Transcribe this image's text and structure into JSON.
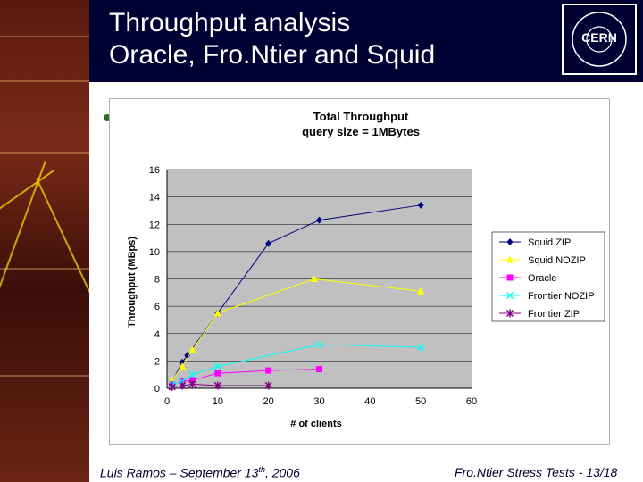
{
  "slide": {
    "title_line1": "Throughput analysis",
    "title_line2": "Oracle, Fro.Ntier and Squid",
    "logo_text": "CERN",
    "footer_left_prefix": "Luis Ramos – September 13",
    "footer_left_sup": "th",
    "footer_left_suffix": ", 2006",
    "footer_right": "Fro.Ntier Stress Tests - 13/18"
  },
  "chart_data": {
    "type": "line",
    "title": "Total Throughput",
    "subtitle": "query size = 1MBytes",
    "xlabel": "# of clients",
    "ylabel": "Throughput (MBps)",
    "xlim": [
      0,
      60
    ],
    "ylim": [
      0,
      16
    ],
    "xticks": [
      0,
      10,
      20,
      30,
      40,
      50,
      60
    ],
    "yticks": [
      0,
      2,
      4,
      6,
      8,
      10,
      12,
      14,
      16
    ],
    "grid": "horizontal",
    "legend_position": "right",
    "series": [
      {
        "name": "Squid ZIP",
        "color": "#00007f",
        "marker": "diamond",
        "x": [
          1,
          3,
          4,
          10,
          20,
          30,
          50
        ],
        "y": [
          0.5,
          1.9,
          2.4,
          5.5,
          10.6,
          12.3,
          13.4
        ]
      },
      {
        "name": "Squid NOZIP",
        "color": "#ffff00",
        "marker": "triangle",
        "x": [
          1,
          3,
          5,
          10,
          29,
          50
        ],
        "y": [
          0.6,
          1.6,
          2.8,
          5.5,
          8.0,
          7.1
        ]
      },
      {
        "name": "Oracle",
        "color": "#ff00ff",
        "marker": "square",
        "x": [
          1,
          3,
          5,
          10,
          20,
          30
        ],
        "y": [
          0.3,
          0.5,
          0.6,
          1.1,
          1.3,
          1.4
        ]
      },
      {
        "name": "Frontier NOZIP",
        "color": "#00ffff",
        "marker": "x",
        "x": [
          1,
          3,
          5,
          10,
          30,
          50
        ],
        "y": [
          0.3,
          0.5,
          1.0,
          1.6,
          3.2,
          3.0
        ]
      },
      {
        "name": "Frontier ZIP",
        "color": "#800080",
        "marker": "star",
        "x": [
          1,
          3,
          5,
          10,
          20
        ],
        "y": [
          0.1,
          0.2,
          0.3,
          0.2,
          0.2
        ]
      }
    ]
  }
}
